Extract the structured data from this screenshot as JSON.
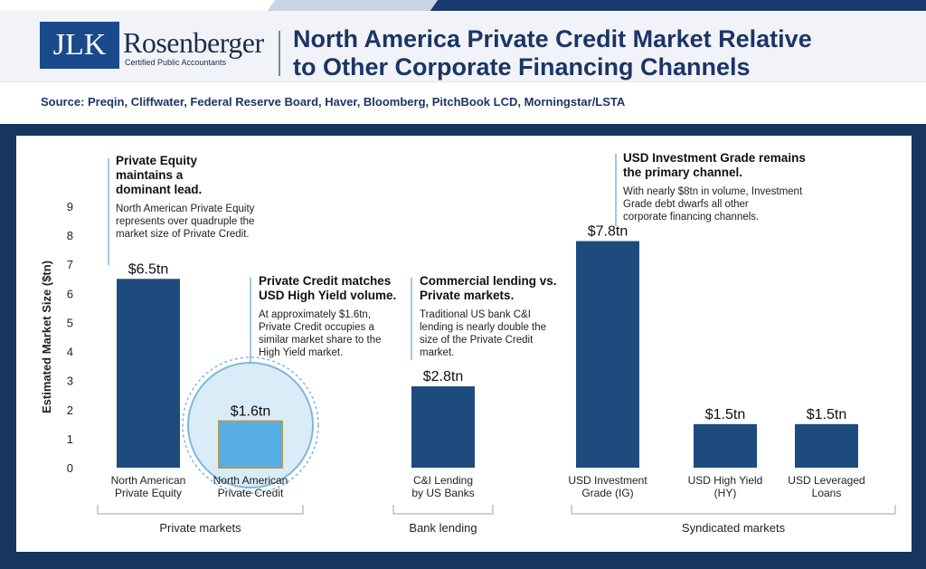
{
  "header": {
    "logo_mark": "JLK",
    "logo_name": "Rosenberger",
    "logo_sub": "Certified Public Accountants",
    "title_line1": "North America Private Credit Market Relative",
    "title_line2": "to Other Corporate Financing Channels"
  },
  "source": "Source: Preqin, Cliffwater, Federal Reserve Board, Haver, Bloomberg, PitchBook LCD, Morningstar/LSTA",
  "colors": {
    "bar": "#1d4b7d",
    "highlight_bar": "#57aee6",
    "highlight_border": "#b69a56",
    "callout": "#7fb6d9",
    "circle_fill": "#d9ecf8",
    "panel": "#16365f"
  },
  "chart_data": {
    "type": "bar",
    "ylabel": "Estimated Market Size ($tn)",
    "ylim": [
      0,
      9
    ],
    "yticks": [
      "0",
      "1",
      "2",
      "3",
      "4",
      "5",
      "6",
      "7",
      "8",
      "9"
    ],
    "categories": [
      {
        "line1": "North American",
        "line2": "Private Equity"
      },
      {
        "line1": "North American",
        "line2": "Private Credit"
      },
      {
        "line1": "C&I Lending",
        "line2": "by US Banks"
      },
      {
        "line1": "USD Investment",
        "line2": "Grade (IG)"
      },
      {
        "line1": "USD High Yield",
        "line2": "(HY)"
      },
      {
        "line1": "USD Leveraged",
        "line2": "Loans"
      }
    ],
    "values": [
      6.5,
      1.6,
      2.8,
      7.8,
      1.5,
      1.5
    ],
    "value_labels": [
      "$6.5tn",
      "$1.6tn",
      "$2.8tn",
      "$7.8tn",
      "$1.5tn",
      "$1.5tn"
    ],
    "highlighted_index": 1,
    "groups": [
      {
        "label": "Private markets",
        "first": 0,
        "last": 1
      },
      {
        "label": "Bank lending",
        "first": 2,
        "last": 2
      },
      {
        "label": "Syndicated markets",
        "first": 3,
        "last": 5
      }
    ],
    "annotations": [
      {
        "target": 0,
        "heading": [
          "Private Equity",
          "maintains a",
          "dominant lead."
        ],
        "body": [
          "North American Private Equity",
          "represents over quadruple the",
          "market size of Private Credit."
        ]
      },
      {
        "target": 1,
        "heading": [
          "Private Credit matches",
          "USD High Yield volume."
        ],
        "body": [
          "At approximately $1.6tn,",
          "Private Credit occupies a",
          "similar market share to the",
          "High Yield market."
        ]
      },
      {
        "target": 2,
        "heading": [
          "Commercial lending vs.",
          "Private markets."
        ],
        "body": [
          "Traditional US bank C&I",
          "lending is nearly double the",
          "size of the Private Credit",
          "market."
        ]
      },
      {
        "target": 3,
        "heading": [
          "USD Investment Grade remains",
          "the primary channel."
        ],
        "body": [
          "With nearly $8tn in volume, Investment",
          "Grade debt dwarfs all other",
          "corporate financing channels."
        ]
      }
    ]
  }
}
